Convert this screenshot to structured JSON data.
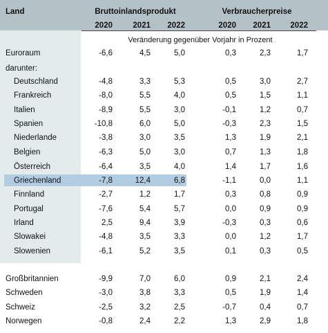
{
  "header": {
    "land": "Land",
    "group_bip": "Bruttoinlandsprodukt",
    "group_vpi": "Verbraucherpreise",
    "years": [
      "2020",
      "2021",
      "2022",
      "2020",
      "2021",
      "2022"
    ]
  },
  "subtitle": "Veränderung gegenüber Vorjahr in Prozent",
  "rows": [
    {
      "land": "Euroraum",
      "v": [
        "-6,6",
        "4,5",
        "5,0",
        "0,3",
        "2,3",
        "1,7"
      ]
    },
    {
      "land": "darunter:",
      "v": [
        "",
        "",
        "",
        "",
        "",
        ""
      ]
    },
    {
      "land": "Deutschland",
      "v": [
        "-4,8",
        "3,3",
        "5,3",
        "0,5",
        "3,0",
        "2,7"
      ]
    },
    {
      "land": "Frankreich",
      "v": [
        "-8,0",
        "5,5",
        "4,0",
        "0,5",
        "1,5",
        "1,1"
      ]
    },
    {
      "land": "Italien",
      "v": [
        "-8,9",
        "5,5",
        "3,0",
        "-0,1",
        "1,2",
        "0,7"
      ]
    },
    {
      "land": "Spanien",
      "v": [
        "-10,8",
        "6,0",
        "5,0",
        "-0,3",
        "2,3",
        "1,5"
      ]
    },
    {
      "land": "Niederlande",
      "v": [
        "-3,8",
        "3,0",
        "3,5",
        "1,3",
        "1,9",
        "2,1"
      ]
    },
    {
      "land": "Belgien",
      "v": [
        "-6,3",
        "5,0",
        "3,0",
        "0,7",
        "1,3",
        "1,8"
      ]
    },
    {
      "land": "Österreich",
      "v": [
        "-6,4",
        "3,5",
        "4,0",
        "1,4",
        "1,7",
        "1,6"
      ]
    },
    {
      "land": "Griechenland",
      "v": [
        "-7,8",
        "12,4",
        "6,8",
        "-1,1",
        "0,0",
        "1,1"
      ]
    },
    {
      "land": "Finnland",
      "v": [
        "-2,7",
        "1,2",
        "1,7",
        "0,3",
        "0,8",
        "0,9"
      ]
    },
    {
      "land": "Portugal",
      "v": [
        "-7,6",
        "5,4",
        "5,7",
        "0,0",
        "0,9",
        "0,9"
      ]
    },
    {
      "land": "Irland",
      "v": [
        "2,5",
        "9,4",
        "3,9",
        "-0,3",
        "0,3",
        "0,6"
      ]
    },
    {
      "land": "Slowakei",
      "v": [
        "-4,8",
        "3,5",
        "3,3",
        "0,0",
        "1,2",
        "1,7"
      ]
    },
    {
      "land": "Slowenien",
      "v": [
        "-6,1",
        "5,2",
        "3,5",
        "0,1",
        "0,3",
        "0,5"
      ]
    },
    {
      "land": "Großbritannien",
      "v": [
        "-9,9",
        "7,0",
        "6,0",
        "0,9",
        "2,1",
        "2,4"
      ]
    },
    {
      "land": "Schweden",
      "v": [
        "-3,0",
        "3,8",
        "3,3",
        "0,5",
        "1,9",
        "1,4"
      ]
    },
    {
      "land": "Schweiz",
      "v": [
        "-2,5",
        "3,2",
        "2,5",
        "-0,7",
        "0,4",
        "0,7"
      ]
    },
    {
      "land": "Norwegen",
      "v": [
        "-0,8",
        "2,4",
        "2,2",
        "1,3",
        "2,9",
        "1,8"
      ]
    }
  ]
}
